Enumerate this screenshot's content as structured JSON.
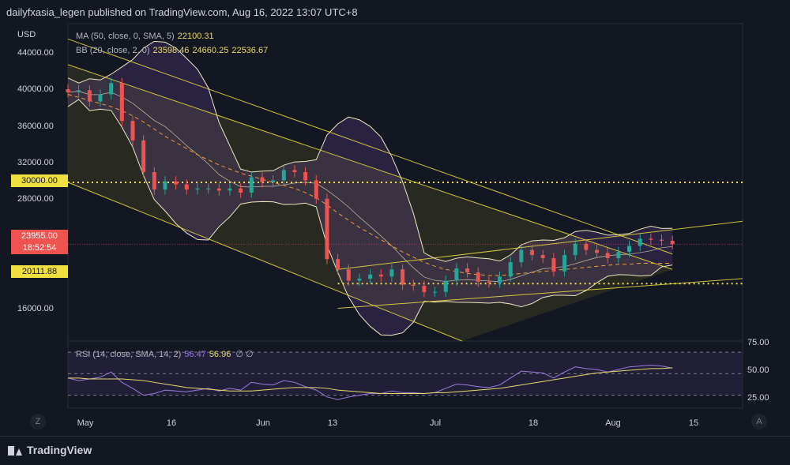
{
  "header": {
    "publisher_line": "dailyfxasia_legen published on TradingView.com, Aug 16, 2022 13:07 UTC+8"
  },
  "currency": "USD",
  "legend": {
    "ma_label": "MA (50, close, 0, SMA, 5)",
    "ma_value": "22100.31",
    "bb_label": "BB (20, close, 2, 0)",
    "bb_basis": "23598.46",
    "bb_upper": "24660.25",
    "bb_lower": "22536.67"
  },
  "rsi_legend": {
    "label": "RSI (14, close, SMA, 14, 2)",
    "rsi_value": "56.47",
    "sma_value": "56.96",
    "extra": "∅ ∅"
  },
  "price_axis": {
    "ticks": [
      "44000.00",
      "40000.00",
      "36000.00",
      "32000.00",
      "28000.00",
      "16000.00"
    ],
    "tags": {
      "level_high": "30000.00",
      "last_price": "23955.00",
      "countdown": "18:52:54",
      "level_low": "20111.88"
    }
  },
  "rsi_axis": {
    "ticks": [
      "75.00",
      "50.00",
      "25.00"
    ]
  },
  "time_axis": {
    "ticks": [
      "May",
      "16",
      "Jun",
      "13",
      "Jul",
      "18",
      "Aug",
      "15"
    ]
  },
  "corner_buttons": {
    "left": "Z",
    "right": "A"
  },
  "footer": {
    "brand": "TradingView"
  },
  "colors": {
    "background": "#131722",
    "up": "#26a69a",
    "down": "#ef5350",
    "ma": "#e8d96a",
    "bollinger": "#f0e8c0",
    "bollinger_fill": "#7b4fb0",
    "trendline": "#f0e040",
    "rsi": "#9c7cdc",
    "level_tag": "#f0e040",
    "last_price_tag": "#ef5350"
  },
  "chart_data": [
    {
      "type": "candlestick",
      "title": "",
      "ylim": [
        14500,
        45500
      ],
      "x": [
        "2022-04-26",
        "2022-04-28",
        "2022-04-30",
        "2022-05-02",
        "2022-05-04",
        "2022-05-06",
        "2022-05-08",
        "2022-05-10",
        "2022-05-12",
        "2022-05-14",
        "2022-05-16",
        "2022-05-18",
        "2022-05-20",
        "2022-05-22",
        "2022-05-24",
        "2022-05-26",
        "2022-05-28",
        "2022-05-30",
        "2022-06-01",
        "2022-06-03",
        "2022-06-05",
        "2022-06-07",
        "2022-06-09",
        "2022-06-11",
        "2022-06-13",
        "2022-06-15",
        "2022-06-17",
        "2022-06-19",
        "2022-06-21",
        "2022-06-23",
        "2022-06-25",
        "2022-06-27",
        "2022-06-29",
        "2022-07-01",
        "2022-07-03",
        "2022-07-05",
        "2022-07-07",
        "2022-07-09",
        "2022-07-11",
        "2022-07-13",
        "2022-07-15",
        "2022-07-17",
        "2022-07-19",
        "2022-07-21",
        "2022-07-23",
        "2022-07-25",
        "2022-07-27",
        "2022-07-29",
        "2022-07-31",
        "2022-08-02",
        "2022-08-04",
        "2022-08-06",
        "2022-08-08",
        "2022-08-10",
        "2022-08-12",
        "2022-08-14",
        "2022-08-16"
      ],
      "close": [
        38800,
        39000,
        37900,
        38600,
        39700,
        36000,
        34100,
        31000,
        29300,
        30100,
        29800,
        29300,
        29400,
        29400,
        29200,
        29400,
        29000,
        30500,
        30000,
        30200,
        31200,
        31000,
        30200,
        28400,
        22500,
        21500,
        20400,
        20600,
        21000,
        20800,
        21500,
        20000,
        19900,
        19300,
        19300,
        20400,
        21600,
        21200,
        20300,
        20200,
        20800,
        22200,
        23400,
        22900,
        22600,
        21300,
        22900,
        24000,
        23400,
        23100,
        22600,
        23200,
        23800,
        24500,
        24400,
        24300,
        23955
      ],
      "ma_50": [
        38600,
        38300,
        38000,
        37700,
        37400,
        37000,
        36500,
        35900,
        35200,
        34500,
        33900,
        33300,
        32700,
        32200,
        31700,
        31300,
        30900,
        30600,
        30300,
        30000,
        29700,
        29400,
        29000,
        28500,
        27800,
        27000,
        26300,
        25600,
        25000,
        24400,
        23800,
        23200,
        22700,
        22200,
        21800,
        21500,
        21300,
        21100,
        21000,
        20900,
        20900,
        21000,
        21100,
        21200,
        21300,
        21400,
        21500,
        21600,
        21700,
        21800,
        21900,
        22000,
        22000,
        22100,
        22100,
        22100,
        22100
      ],
      "trendlines": [
        {
          "name": "",
          "points": [
            [
              "2022-04-26",
              44000
            ],
            [
              "2022-08-16",
              23000
            ]
          ]
        },
        {
          "name": "",
          "points": [
            [
              "2022-04-26",
              41500
            ],
            [
              "2022-08-16",
              21500
            ]
          ]
        },
        {
          "name": "",
          "points": [
            [
              "2022-04-26",
              30000
            ],
            [
              "2022-07-08",
              14500
            ]
          ]
        },
        {
          "name": "",
          "points": [
            [
              "2022-06-15",
              17700
            ],
            [
              "2022-08-29",
              20600
            ]
          ]
        },
        {
          "name": "",
          "points": [
            [
              "2022-06-15",
              21500
            ],
            [
              "2022-08-29",
              26200
            ]
          ]
        }
      ],
      "levels": [
        30000,
        20111.88,
        23955
      ],
      "last_price": 23955
    },
    {
      "type": "line",
      "title": "RSI",
      "ylim": [
        10,
        88
      ],
      "ticks": [
        75,
        50,
        25
      ],
      "series": [
        {
          "name": "RSI",
          "values": [
            45,
            42,
            44,
            46,
            52,
            40,
            33,
            25,
            27,
            31,
            30,
            29,
            31,
            33,
            30,
            33,
            31,
            40,
            38,
            37,
            42,
            40,
            35,
            31,
            23,
            20,
            23,
            25,
            27,
            27,
            30,
            28,
            28,
            27,
            28,
            33,
            38,
            37,
            35,
            34,
            37,
            45,
            53,
            52,
            51,
            45,
            52,
            58,
            56,
            55,
            52,
            55,
            58,
            59,
            60,
            59,
            56.47
          ]
        },
        {
          "name": "SMA",
          "values": [
            45,
            45,
            44,
            44,
            44,
            44,
            43,
            42,
            40,
            38,
            36,
            34,
            33,
            32,
            31,
            30,
            30,
            30,
            31,
            32,
            33,
            34,
            34,
            34,
            33,
            31,
            30,
            29,
            28,
            27,
            27,
            27,
            27,
            27,
            28,
            28,
            29,
            30,
            31,
            32,
            33,
            35,
            37,
            39,
            41,
            43,
            45,
            47,
            49,
            51,
            52,
            53,
            54,
            55,
            56,
            56,
            56.96
          ]
        }
      ]
    }
  ]
}
